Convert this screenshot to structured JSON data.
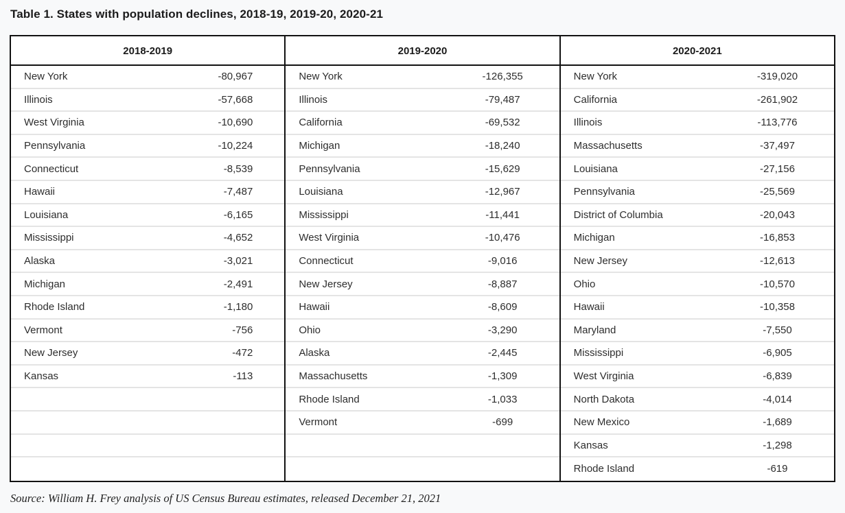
{
  "title": "Table 1. States with population declines, 2018-19, 2019-20, 2020-21",
  "source": "Source: William H. Frey analysis of US Census Bureau estimates, released December 21, 2021",
  "colors": {
    "background": "#f8f9fa",
    "table_background": "#ffffff",
    "border": "#111111",
    "row_divider": "#e4e4e4",
    "text": "#2d2d2d",
    "heading_text": "#1b1b1b"
  },
  "table": {
    "row_count": 18,
    "groups": [
      {
        "period": "2018-2019",
        "rows": [
          {
            "state": "New York",
            "value": "-80,967"
          },
          {
            "state": "Illinois",
            "value": "-57,668"
          },
          {
            "state": "West Virginia",
            "value": "-10,690"
          },
          {
            "state": "Pennsylvania",
            "value": "-10,224"
          },
          {
            "state": "Connecticut",
            "value": "-8,539"
          },
          {
            "state": "Hawaii",
            "value": "-7,487"
          },
          {
            "state": "Louisiana",
            "value": "-6,165"
          },
          {
            "state": "Mississippi",
            "value": "-4,652"
          },
          {
            "state": "Alaska",
            "value": "-3,021"
          },
          {
            "state": "Michigan",
            "value": "-2,491"
          },
          {
            "state": "Rhode Island",
            "value": "-1,180"
          },
          {
            "state": "Vermont",
            "value": "-756"
          },
          {
            "state": "New Jersey",
            "value": "-472"
          },
          {
            "state": "Kansas",
            "value": "-113"
          }
        ]
      },
      {
        "period": "2019-2020",
        "rows": [
          {
            "state": "New York",
            "value": "-126,355"
          },
          {
            "state": "Illinois",
            "value": "-79,487"
          },
          {
            "state": "California",
            "value": "-69,532"
          },
          {
            "state": "Michigan",
            "value": "-18,240"
          },
          {
            "state": "Pennsylvania",
            "value": "-15,629"
          },
          {
            "state": "Louisiana",
            "value": "-12,967"
          },
          {
            "state": "Mississippi",
            "value": "-11,441"
          },
          {
            "state": "West Virginia",
            "value": "-10,476"
          },
          {
            "state": "Connecticut",
            "value": "-9,016"
          },
          {
            "state": "New Jersey",
            "value": "-8,887"
          },
          {
            "state": "Hawaii",
            "value": "-8,609"
          },
          {
            "state": "Ohio",
            "value": "-3,290"
          },
          {
            "state": "Alaska",
            "value": "-2,445"
          },
          {
            "state": "Massachusetts",
            "value": "-1,309"
          },
          {
            "state": "Rhode Island",
            "value": "-1,033"
          },
          {
            "state": "Vermont",
            "value": "-699"
          }
        ]
      },
      {
        "period": "2020-2021",
        "rows": [
          {
            "state": "New York",
            "value": "-319,020"
          },
          {
            "state": "California",
            "value": "-261,902"
          },
          {
            "state": "Illinois",
            "value": "-113,776"
          },
          {
            "state": "Massachusetts",
            "value": "-37,497"
          },
          {
            "state": "Louisiana",
            "value": "-27,156"
          },
          {
            "state": "Pennsylvania",
            "value": "-25,569"
          },
          {
            "state": "District of Columbia",
            "value": "-20,043"
          },
          {
            "state": "Michigan",
            "value": "-16,853"
          },
          {
            "state": "New Jersey",
            "value": "-12,613"
          },
          {
            "state": "Ohio",
            "value": "-10,570"
          },
          {
            "state": "Hawaii",
            "value": "-10,358"
          },
          {
            "state": "Maryland",
            "value": "-7,550"
          },
          {
            "state": "Mississippi",
            "value": "-6,905"
          },
          {
            "state": "West Virginia",
            "value": "-6,839"
          },
          {
            "state": "North Dakota",
            "value": "-4,014"
          },
          {
            "state": "New Mexico",
            "value": "-1,689"
          },
          {
            "state": "Kansas",
            "value": "-1,298"
          },
          {
            "state": "Rhode Island",
            "value": "-619"
          }
        ]
      }
    ]
  },
  "chart_data": {
    "type": "table",
    "title": "Table 1. States with population declines, 2018-19, 2019-20, 2020-21",
    "columns": [
      "2018-2019",
      "2019-2020",
      "2020-2021"
    ],
    "series": [
      {
        "name": "2018-2019",
        "states": [
          "New York",
          "Illinois",
          "West Virginia",
          "Pennsylvania",
          "Connecticut",
          "Hawaii",
          "Louisiana",
          "Mississippi",
          "Alaska",
          "Michigan",
          "Rhode Island",
          "Vermont",
          "New Jersey",
          "Kansas"
        ],
        "values": [
          -80967,
          -57668,
          -10690,
          -10224,
          -8539,
          -7487,
          -6165,
          -4652,
          -3021,
          -2491,
          -1180,
          -756,
          -472,
          -113
        ]
      },
      {
        "name": "2019-2020",
        "states": [
          "New York",
          "Illinois",
          "California",
          "Michigan",
          "Pennsylvania",
          "Louisiana",
          "Mississippi",
          "West Virginia",
          "Connecticut",
          "New Jersey",
          "Hawaii",
          "Ohio",
          "Alaska",
          "Massachusetts",
          "Rhode Island",
          "Vermont"
        ],
        "values": [
          -126355,
          -79487,
          -69532,
          -18240,
          -15629,
          -12967,
          -11441,
          -10476,
          -9016,
          -8887,
          -8609,
          -3290,
          -2445,
          -1309,
          -1033,
          -699
        ]
      },
      {
        "name": "2020-2021",
        "states": [
          "New York",
          "California",
          "Illinois",
          "Massachusetts",
          "Louisiana",
          "Pennsylvania",
          "District of Columbia",
          "Michigan",
          "New Jersey",
          "Ohio",
          "Hawaii",
          "Maryland",
          "Mississippi",
          "West Virginia",
          "North Dakota",
          "New Mexico",
          "Kansas",
          "Rhode Island"
        ],
        "values": [
          -319020,
          -261902,
          -113776,
          -37497,
          -27156,
          -25569,
          -20043,
          -16853,
          -12613,
          -10570,
          -10358,
          -7550,
          -6905,
          -6839,
          -4014,
          -1689,
          -1298,
          -619
        ]
      }
    ],
    "source": "Source: William H. Frey analysis of US Census Bureau estimates, released December 21, 2021"
  }
}
